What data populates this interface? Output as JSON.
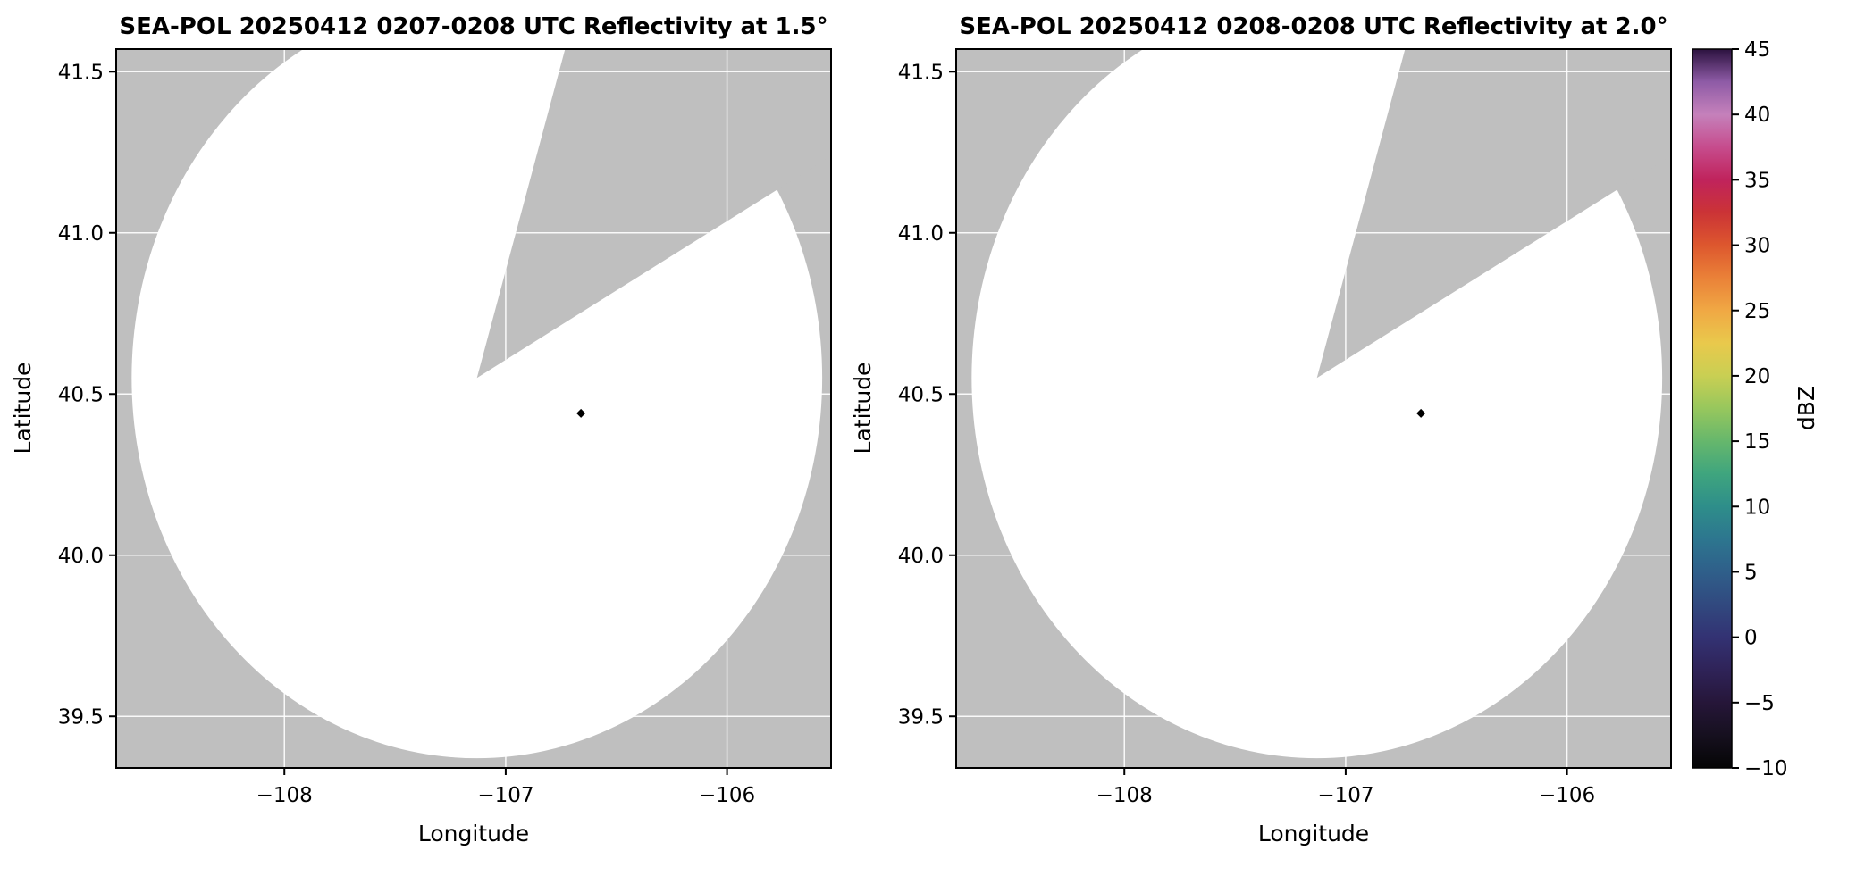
{
  "style": {
    "figure_background": "#ffffff",
    "background_gray": "#bfbfbf",
    "coverage_fill": "#ffffff",
    "grid_color": "#ffffff",
    "frame_color": "#000000",
    "text_color": "#000000"
  },
  "chart_data": [
    {
      "type": "heatmap",
      "radar_name": "SEA-POL",
      "date": "20250412",
      "time_utc": "0207-0208",
      "elevation_deg": 1.5,
      "title": "SEA-POL 20250412 0207-0208 UTC Reflectivity at 1.5°",
      "xlabel": "Longitude",
      "ylabel": "Latitude",
      "xlim": [
        -108.76,
        -105.53
      ],
      "ylim": [
        39.34,
        41.57
      ],
      "x_ticks": [
        -108,
        -107,
        -106
      ],
      "x_tick_labels": [
        "−108",
        "−107",
        "−106"
      ],
      "y_ticks": [
        39.5,
        40.0,
        40.5,
        41.0,
        41.5
      ],
      "y_tick_labels": [
        "39.5",
        "40.0",
        "40.5",
        "41.0",
        "41.5"
      ],
      "grid": true,
      "legend": "none",
      "radar": {
        "center_lon": -107.13,
        "center_lat": 40.55,
        "radius_lon_deg": 1.56,
        "radius_lat_deg": 1.18,
        "missing_sector_polygon": [
          [
            -107.13,
            40.55
          ],
          [
            -106.72,
            41.6
          ],
          [
            -105.48,
            41.6
          ],
          [
            -105.48,
            41.26
          ]
        ]
      },
      "echo_point": {
        "lon": -106.66,
        "lat": 40.44,
        "approx_dbz": -10,
        "color": "#000000"
      }
    },
    {
      "type": "heatmap",
      "radar_name": "SEA-POL",
      "date": "20250412",
      "time_utc": "0208-0208",
      "elevation_deg": 2.0,
      "title": "SEA-POL 20250412 0208-0208 UTC Reflectivity at 2.0°",
      "xlabel": "Longitude",
      "ylabel": "Latitude",
      "xlim": [
        -108.76,
        -105.53
      ],
      "ylim": [
        39.34,
        41.57
      ],
      "x_ticks": [
        -108,
        -107,
        -106
      ],
      "x_tick_labels": [
        "−108",
        "−107",
        "−106"
      ],
      "y_ticks": [
        39.5,
        40.0,
        40.5,
        41.0,
        41.5
      ],
      "y_tick_labels": [
        "39.5",
        "40.0",
        "40.5",
        "41.0",
        "41.5"
      ],
      "grid": true,
      "legend": "none",
      "radar": {
        "center_lon": -107.13,
        "center_lat": 40.55,
        "radius_lon_deg": 1.56,
        "radius_lat_deg": 1.18,
        "missing_sector_polygon": [
          [
            -107.13,
            40.55
          ],
          [
            -106.72,
            41.6
          ],
          [
            -105.48,
            41.6
          ],
          [
            -105.48,
            41.26
          ]
        ]
      },
      "echo_point": {
        "lon": -106.66,
        "lat": 40.44,
        "approx_dbz": -10,
        "color": "#000000"
      }
    }
  ],
  "colorbar": {
    "label": "dBZ",
    "min": -10,
    "max": 45,
    "ticks": [
      -10,
      -5,
      0,
      5,
      10,
      15,
      20,
      25,
      30,
      35,
      40,
      45
    ],
    "tick_labels": [
      "−10",
      "−5",
      "0",
      "5",
      "10",
      "15",
      "20",
      "25",
      "30",
      "35",
      "40",
      "45"
    ],
    "stops": [
      {
        "value": -10,
        "color": "#050505"
      },
      {
        "value": -7.5,
        "color": "#16101f"
      },
      {
        "value": -5,
        "color": "#261639"
      },
      {
        "value": -2.5,
        "color": "#2f2358"
      },
      {
        "value": 0,
        "color": "#333273"
      },
      {
        "value": 2.5,
        "color": "#31497f"
      },
      {
        "value": 5,
        "color": "#2f5f8a"
      },
      {
        "value": 7.5,
        "color": "#2d768f"
      },
      {
        "value": 10,
        "color": "#2e8e8a"
      },
      {
        "value": 12.5,
        "color": "#3fa57e"
      },
      {
        "value": 15,
        "color": "#66b76c"
      },
      {
        "value": 17.5,
        "color": "#97c75d"
      },
      {
        "value": 20,
        "color": "#c9cf53"
      },
      {
        "value": 22.5,
        "color": "#e9c94c"
      },
      {
        "value": 25,
        "color": "#f0a844"
      },
      {
        "value": 27.5,
        "color": "#ea8138"
      },
      {
        "value": 30,
        "color": "#dd572e"
      },
      {
        "value": 32.5,
        "color": "#cb3336"
      },
      {
        "value": 35,
        "color": "#c0235c"
      },
      {
        "value": 37.5,
        "color": "#c64c8d"
      },
      {
        "value": 40,
        "color": "#c581bb"
      },
      {
        "value": 42.5,
        "color": "#8e5ba6"
      },
      {
        "value": 45,
        "color": "#2c123f"
      }
    ]
  }
}
